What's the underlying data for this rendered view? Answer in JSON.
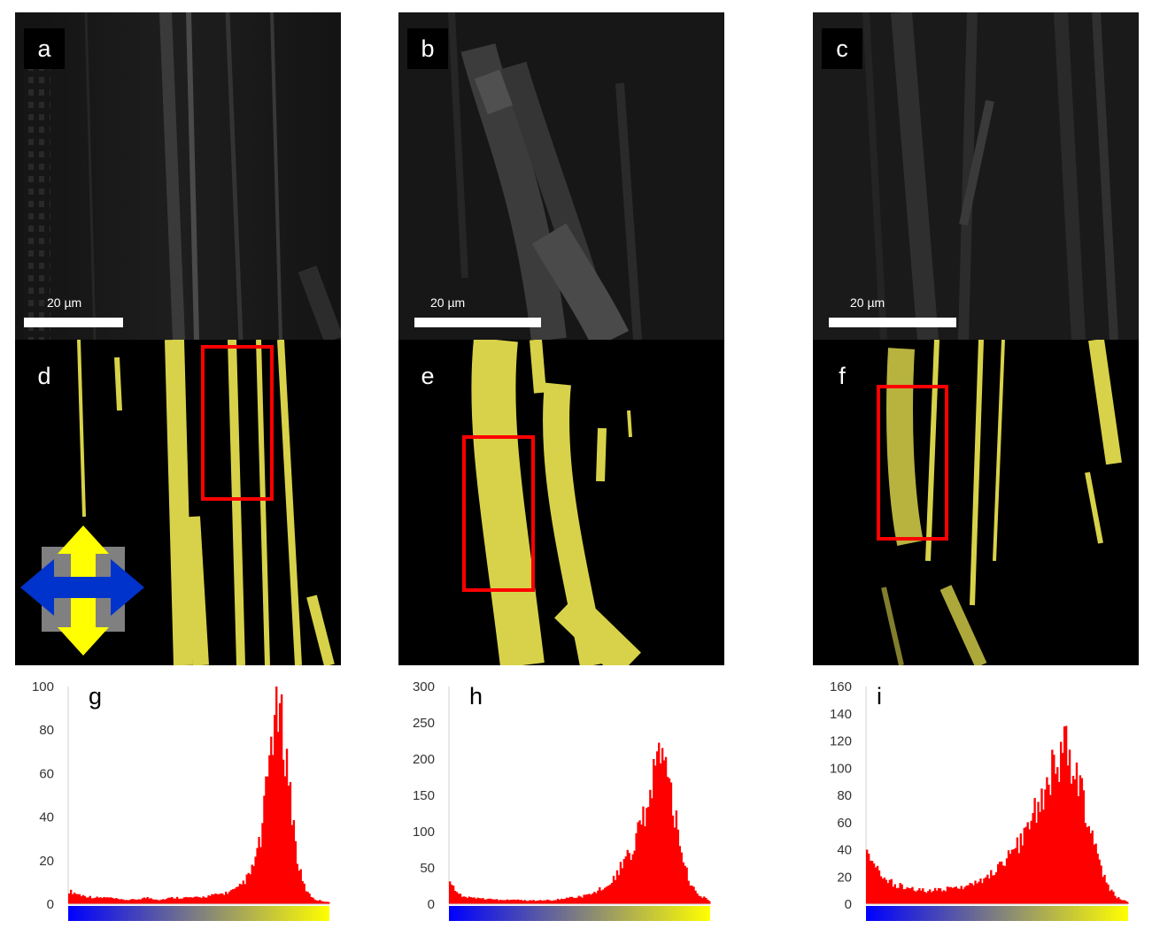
{
  "figure": {
    "top_panels": [
      {
        "id": "a",
        "label": "a",
        "scale_label": "20 µm"
      },
      {
        "id": "b",
        "label": "b",
        "scale_label": "20 µm"
      },
      {
        "id": "c",
        "label": "c",
        "scale_label": "20 µm"
      }
    ],
    "middle_panels": [
      {
        "id": "d",
        "label": "d"
      },
      {
        "id": "e",
        "label": "e"
      },
      {
        "id": "f",
        "label": "f"
      }
    ],
    "colors": {
      "fiber_yellow": "#d8d24a",
      "roi_red": "#ff0000",
      "arrow_yellow": "#ffff00",
      "arrow_blue": "#0033cc",
      "hist_red": "#ff0000",
      "gray_square": "#808080"
    },
    "icons": [
      "polarization-arrows-icon"
    ]
  },
  "chart_data": [
    {
      "type": "bar",
      "label": "g",
      "ylim": [
        0,
        100
      ],
      "yticks": [
        "0",
        "20",
        "40",
        "60",
        "80",
        "100"
      ],
      "colorbar": [
        "#0000ff",
        "#ffff00"
      ],
      "x": [
        0,
        0.05,
        0.1,
        0.15,
        0.2,
        0.25,
        0.3,
        0.35,
        0.4,
        0.45,
        0.5,
        0.55,
        0.6,
        0.65,
        0.7,
        0.74,
        0.76,
        0.78,
        0.8,
        0.82,
        0.84,
        0.86,
        0.88,
        0.9,
        0.92,
        0.95,
        1.0
      ],
      "values": [
        6,
        4,
        3,
        3,
        2,
        2,
        3,
        2,
        3,
        3,
        3,
        4,
        5,
        7,
        14,
        30,
        52,
        78,
        88,
        82,
        65,
        42,
        20,
        10,
        5,
        2,
        1
      ]
    },
    {
      "type": "bar",
      "label": "h",
      "ylim": [
        0,
        300
      ],
      "yticks": [
        "0",
        "50",
        "100",
        "150",
        "200",
        "250",
        "300"
      ],
      "colorbar": [
        "#0000ff",
        "#ffff00"
      ],
      "x": [
        0,
        0.02,
        0.05,
        0.1,
        0.15,
        0.2,
        0.25,
        0.3,
        0.35,
        0.4,
        0.45,
        0.5,
        0.55,
        0.6,
        0.65,
        0.7,
        0.74,
        0.78,
        0.8,
        0.82,
        0.84,
        0.86,
        0.88,
        0.9,
        0.92,
        0.95,
        1.0
      ],
      "values": [
        30,
        18,
        10,
        8,
        7,
        6,
        6,
        5,
        5,
        6,
        8,
        10,
        14,
        25,
        45,
        75,
        115,
        165,
        190,
        200,
        180,
        140,
        100,
        65,
        35,
        15,
        5
      ]
    },
    {
      "type": "bar",
      "label": "i",
      "ylim": [
        0,
        160
      ],
      "yticks": [
        "0",
        "20",
        "40",
        "60",
        "80",
        "100",
        "120",
        "140",
        "160"
      ],
      "colorbar": [
        "#0000ff",
        "#ffff00"
      ],
      "x": [
        0,
        0.02,
        0.05,
        0.1,
        0.15,
        0.2,
        0.25,
        0.3,
        0.35,
        0.4,
        0.45,
        0.5,
        0.55,
        0.6,
        0.65,
        0.7,
        0.72,
        0.74,
        0.76,
        0.78,
        0.8,
        0.82,
        0.85,
        0.88,
        0.9,
        0.93,
        0.96,
        1.0
      ],
      "values": [
        45,
        30,
        22,
        15,
        12,
        10,
        10,
        11,
        12,
        14,
        18,
        25,
        35,
        50,
        70,
        92,
        100,
        108,
        112,
        110,
        100,
        85,
        60,
        38,
        25,
        12,
        5,
        2
      ]
    }
  ]
}
